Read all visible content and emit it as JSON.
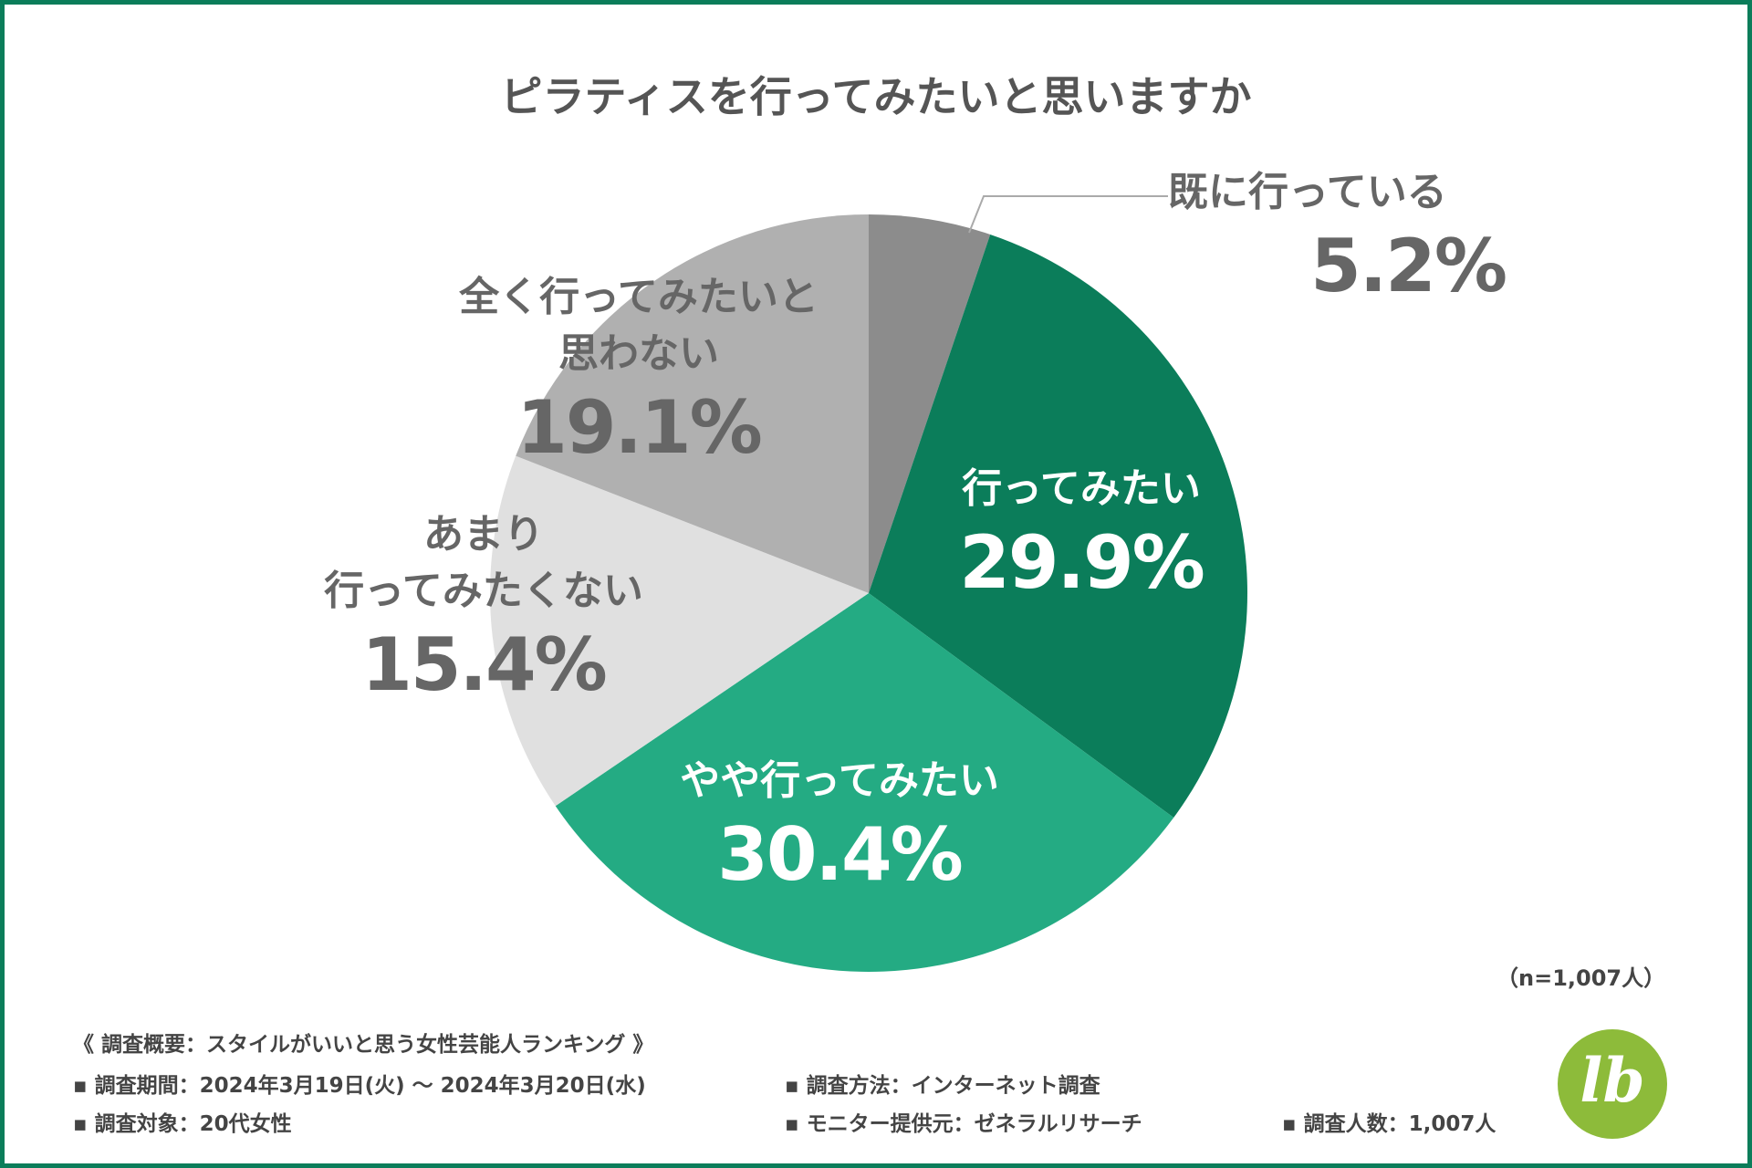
{
  "chart_data": {
    "type": "pie",
    "title": "ピラティスを行ってみたいと思いますか",
    "slices": [
      {
        "name_lines": [
          "既に行っている"
        ],
        "value": 5.2,
        "value_label": "5.2%",
        "color": "#8c8c8c"
      },
      {
        "name_lines": [
          "行ってみたい"
        ],
        "value": 29.9,
        "value_label": "29.9%",
        "color": "#0b7d5a"
      },
      {
        "name_lines": [
          "やや行ってみたい"
        ],
        "value": 30.4,
        "value_label": "30.4%",
        "color": "#24ab83"
      },
      {
        "name_lines": [
          "あまり",
          "行ってみたくない"
        ],
        "value": 15.4,
        "value_label": "15.4%",
        "color": "#e0e0e0"
      },
      {
        "name_lines": [
          "全く行ってみたいと",
          "思わない"
        ],
        "value": 19.1,
        "value_label": "19.1%",
        "color": "#b0b0b0"
      }
    ],
    "sample_size": "（n=1,007人）"
  },
  "summary": {
    "header": "《 調査概要：スタイルがいいと思う女性芸能人ランキング 》",
    "period": "▪ 調査期間：2024年3月19日(火) 〜 2024年3月20日(水)",
    "method": "▪ 調査方法：インターネット調査",
    "target": "▪ 調査対象：20代女性",
    "provider": "▪ モニター提供元：ゼネラルリサーチ",
    "count": "▪ 調査人数：1,007人"
  },
  "logo": {
    "text": "lb",
    "color": "#8dbb3a"
  },
  "colors": {
    "frame": "#0b7d5a",
    "text_gray": "#666666"
  }
}
